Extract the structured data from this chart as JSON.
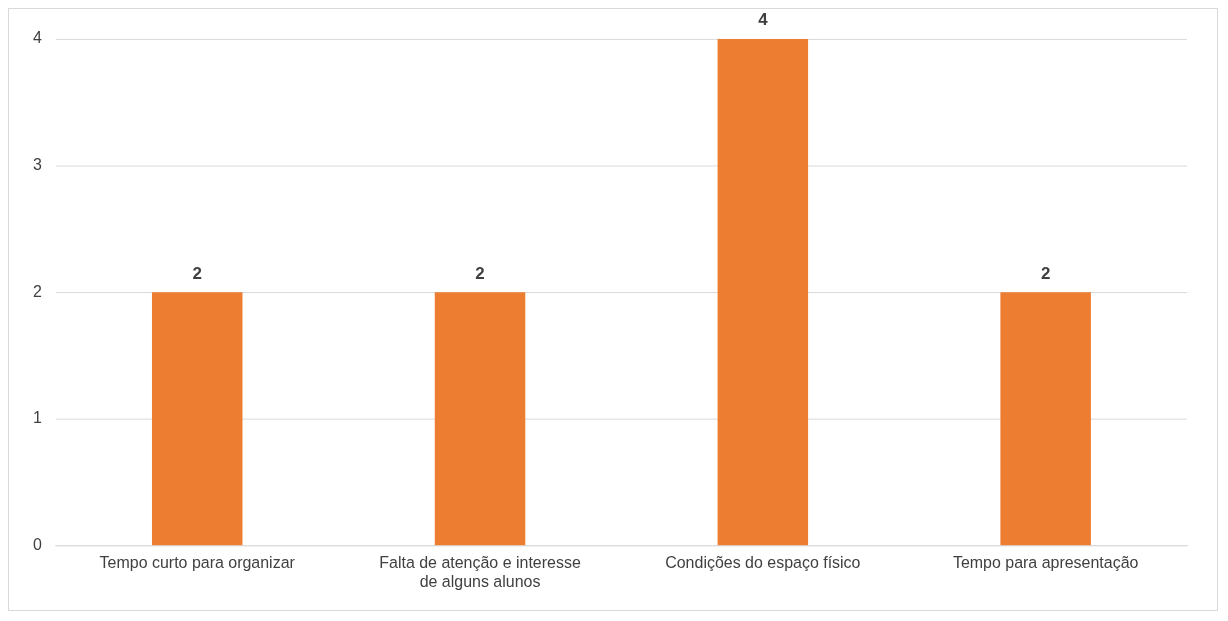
{
  "chart_data": {
    "type": "bar",
    "categories": [
      "Tempo curto para organizar",
      "Falta de atenção e interesse de alguns alunos",
      "Condições do espaço físico",
      "Tempo para apresentação"
    ],
    "values": [
      2,
      2,
      4,
      2
    ],
    "color": "#ed7d31",
    "ylim": [
      0,
      4
    ],
    "yticks": [
      0,
      1,
      2,
      3,
      4
    ],
    "grid": "y",
    "data_labels": true
  }
}
